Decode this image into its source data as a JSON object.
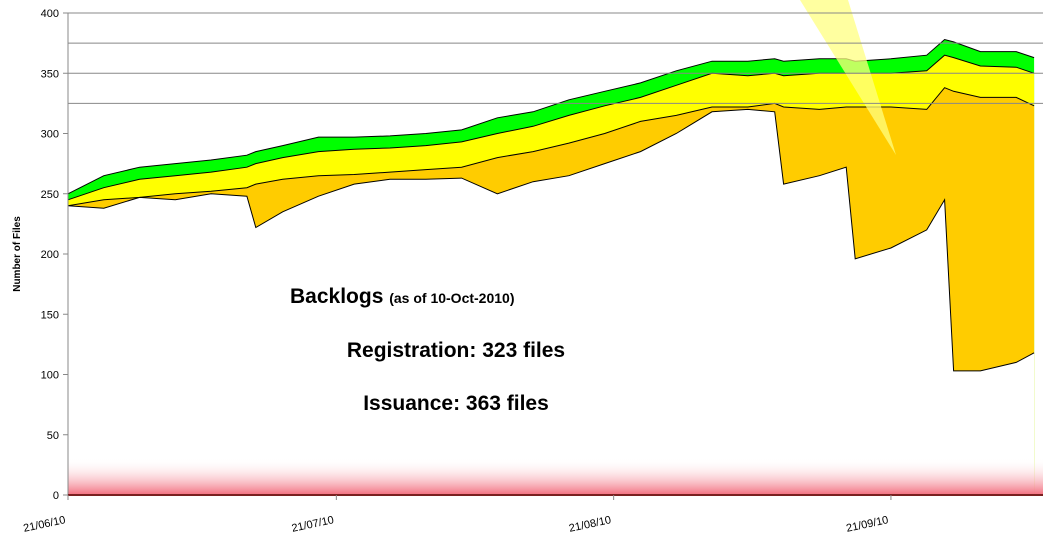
{
  "chart_data": {
    "type": "area",
    "y_label": "Number of Files",
    "annotation": {
      "title": "Backlogs",
      "note": "(as of  10-Oct-2010)",
      "lines": [
        "Registration: 323 files",
        "Issuance: 363 files"
      ]
    },
    "x": [
      "2010-06-21",
      "2010-06-25",
      "2010-06-29",
      "2010-07-03",
      "2010-07-07",
      "2010-07-11",
      "2010-07-12",
      "2010-07-15",
      "2010-07-19",
      "2010-07-23",
      "2010-07-27",
      "2010-07-31",
      "2010-08-04",
      "2010-08-08",
      "2010-08-12",
      "2010-08-16",
      "2010-08-20",
      "2010-08-24",
      "2010-08-28",
      "2010-09-01",
      "2010-09-05",
      "2010-09-08",
      "2010-09-09",
      "2010-09-13",
      "2010-09-16",
      "2010-09-17",
      "2010-09-21",
      "2010-09-25",
      "2010-09-27",
      "2010-09-28",
      "2010-10-01",
      "2010-10-05",
      "2010-10-07"
    ],
    "series": [
      {
        "color": "#00ff00",
        "values": [
          250,
          265,
          272,
          275,
          278,
          282,
          285,
          290,
          297,
          297,
          298,
          300,
          303,
          313,
          318,
          328,
          335,
          342,
          352,
          360,
          360,
          362,
          360,
          362,
          362,
          360,
          362,
          365,
          378,
          376,
          368,
          368,
          363
        ]
      },
      {
        "color": "#ffff00",
        "values": [
          245,
          255,
          262,
          265,
          268,
          272,
          275,
          280,
          285,
          287,
          288,
          290,
          293,
          300,
          306,
          315,
          323,
          330,
          340,
          350,
          348,
          350,
          348,
          350,
          350,
          350,
          350,
          352,
          365,
          363,
          356,
          355,
          350
        ]
      },
      {
        "color": "#ffcc00",
        "values": [
          240,
          245,
          247,
          250,
          252,
          255,
          258,
          262,
          265,
          266,
          268,
          270,
          272,
          280,
          285,
          292,
          300,
          310,
          315,
          322,
          322,
          325,
          322,
          320,
          322,
          322,
          322,
          320,
          338,
          335,
          330,
          330,
          323
        ]
      },
      {
        "color": "#ffffff",
        "values": [
          240,
          238,
          247,
          245,
          250,
          248,
          222,
          235,
          248,
          258,
          262,
          262,
          263,
          250,
          260,
          265,
          275,
          285,
          300,
          318,
          320,
          318,
          258,
          265,
          272,
          196,
          205,
          220,
          245,
          103,
          103,
          110,
          118
        ]
      }
    ],
    "xlim": [
      "2010-06-21",
      "2010-10-08"
    ],
    "xticks": [
      {
        "value": "2010-06-21",
        "label": "21/06/10"
      },
      {
        "value": "2010-07-21",
        "label": "21/07/10"
      },
      {
        "value": "2010-08-21",
        "label": "21/08/10"
      },
      {
        "value": "2010-09-21",
        "label": "21/09/10"
      }
    ],
    "ylim": [
      0,
      400
    ],
    "yticks": [
      0,
      50,
      100,
      150,
      200,
      250,
      300,
      350,
      400
    ],
    "grid_lines": [
      325,
      350,
      375,
      400
    ]
  }
}
